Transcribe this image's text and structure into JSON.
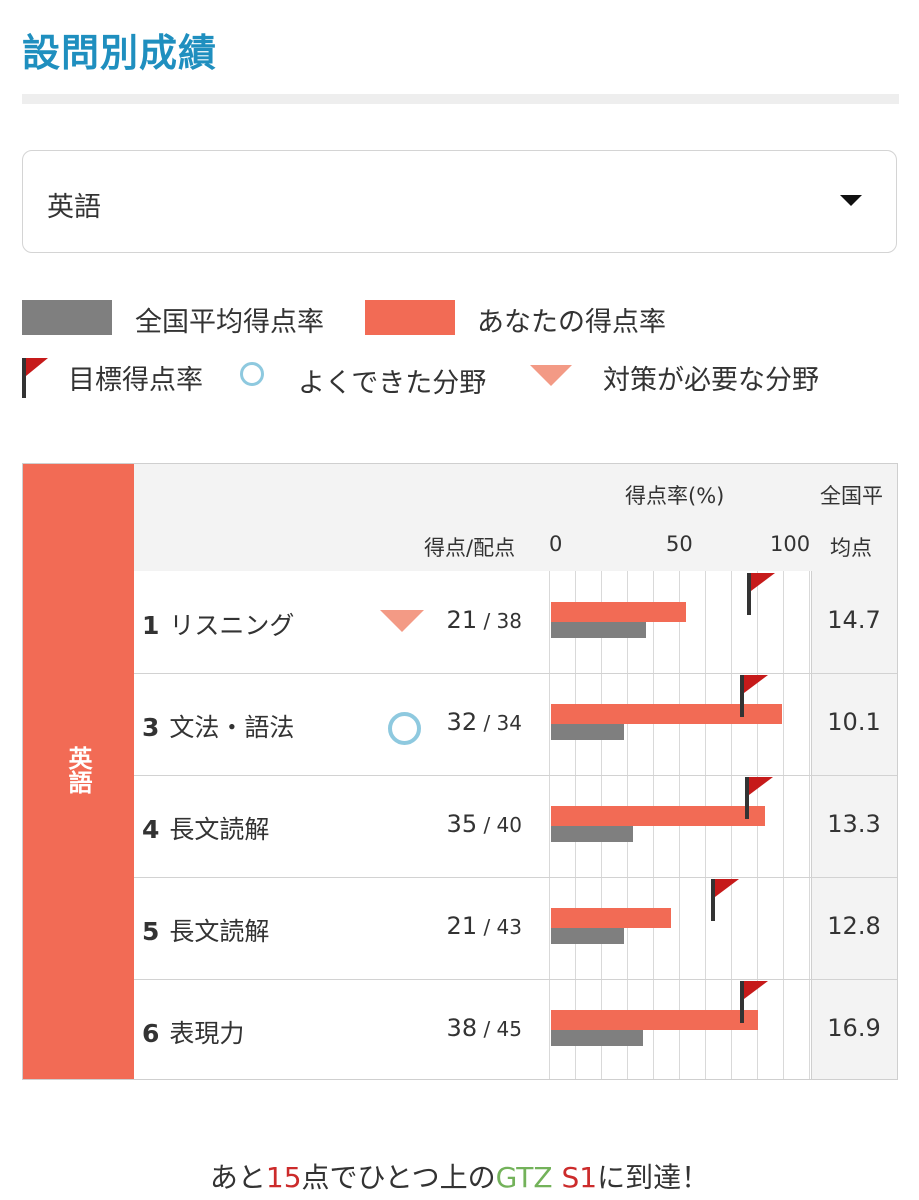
{
  "page_title": "設問別成績",
  "subject_select": {
    "value": "英語"
  },
  "legend": {
    "national_avg": "全国平均得点率",
    "your_rate": "あなたの得点率",
    "target_rate": "目標得点率",
    "good_area": "よくできた分野",
    "needs_work": "対策が必要な分野"
  },
  "colors": {
    "title": "#1f8fbf",
    "accent": "#f26b55",
    "national_avg_bar": "#7f7f7f",
    "good_circle": "#8ec9df",
    "needs_work_triangle": "#f39a85",
    "flag": "#c61a1a"
  },
  "table": {
    "subject": "英語",
    "header": {
      "rate_label": "得点率(%)",
      "score_label": "得点/配点",
      "avg_label_line1": "全国平",
      "avg_label_line2": "均点",
      "ticks": [
        "0",
        "50",
        "100"
      ]
    },
    "rows": [
      {
        "no": "1",
        "name": "リスニング",
        "marker": "needs-work",
        "score": "21",
        "max": "38",
        "your_rate": 55.3,
        "national_rate": 38.7,
        "target_rate": 81,
        "avg": "14.7"
      },
      {
        "no": "3",
        "name": "文法・語法",
        "marker": "good",
        "score": "32",
        "max": "34",
        "your_rate": 94.1,
        "national_rate": 29.7,
        "target_rate": 78,
        "avg": "10.1"
      },
      {
        "no": "4",
        "name": "長文読解",
        "marker": "",
        "score": "35",
        "max": "40",
        "your_rate": 87.5,
        "national_rate": 33.3,
        "target_rate": 80,
        "avg": "13.3"
      },
      {
        "no": "5",
        "name": "長文読解",
        "marker": "",
        "score": "21",
        "max": "43",
        "your_rate": 48.8,
        "national_rate": 29.8,
        "target_rate": 66,
        "avg": "12.8"
      },
      {
        "no": "6",
        "name": "表現力",
        "marker": "",
        "score": "38",
        "max": "45",
        "your_rate": 84.4,
        "national_rate": 37.6,
        "target_rate": 78,
        "avg": "16.9"
      }
    ]
  },
  "footer": {
    "prefix": "あと",
    "points": "15",
    "mid": "点でひとつ上の",
    "gtz": "GTZ",
    "level": "S1",
    "suffix": "に到達！"
  }
}
